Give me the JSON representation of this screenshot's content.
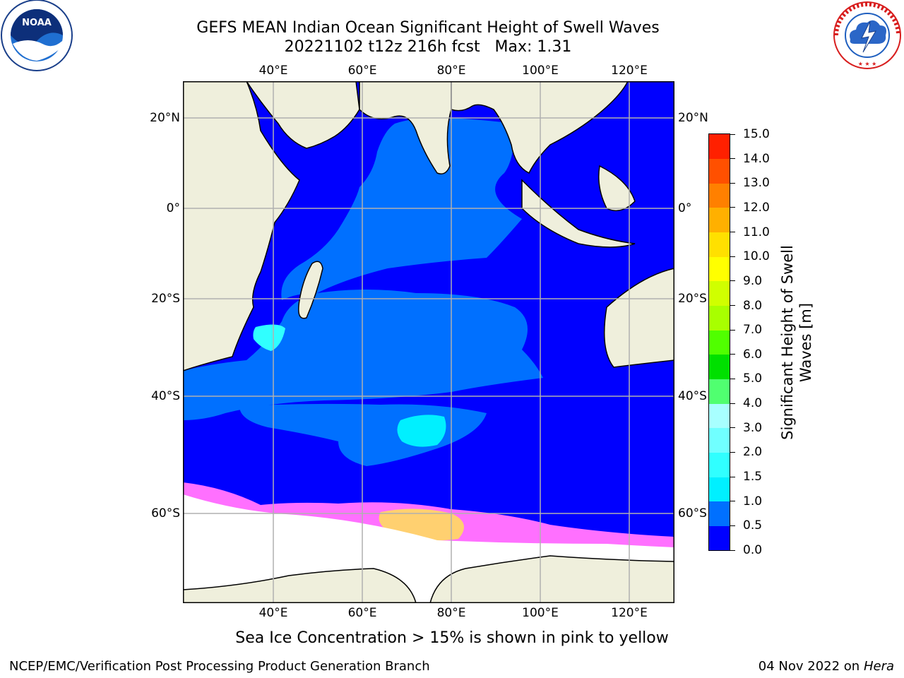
{
  "title": "GEFS MEAN Indian Ocean Significant Height of Swell Waves",
  "subtitle": "20221102 t12z 216h fcst   Max: 1.31",
  "lon_labels": [
    "40°E",
    "60°E",
    "80°E",
    "100°E",
    "120°E"
  ],
  "lat_labels": [
    "20°N",
    "0°",
    "20°S",
    "40°S",
    "60°S"
  ],
  "colorbar": {
    "label_line1": "Significant Height of Swell",
    "label_line2": "Waves [m]",
    "ticks": [
      "0.0",
      "0.5",
      "1.0",
      "1.5",
      "2.0",
      "3.0",
      "4.0",
      "5.0",
      "6.0",
      "7.0",
      "8.0",
      "9.0",
      "10.0",
      "11.0",
      "12.0",
      "13.0",
      "14.0",
      "15.0"
    ],
    "colors": [
      "#0000ff",
      "#0070ff",
      "#00f0ff",
      "#30ffff",
      "#70ffff",
      "#a8ffff",
      "#50ff70",
      "#00e000",
      "#50ff00",
      "#a8ff00",
      "#d0ff00",
      "#ffff00",
      "#ffe000",
      "#ffb000",
      "#ff8000",
      "#ff5000",
      "#ff2000",
      "#ff0000"
    ]
  },
  "note": "Sea Ice Concentration > 15% is shown in pink to yellow",
  "footer": {
    "credit": "NCEP/EMC/Verification Post Processing Product Generation Branch",
    "date": "04 Nov 2022 on",
    "machine": "Hera"
  },
  "logos": {
    "left": "NOAA",
    "right": "NATIONAL WEATHER SERVICE"
  },
  "palette": {
    "land": "#efefdc",
    "sea_ice": "#ffffff",
    "swell_low": "#0000ff",
    "swell_mid": "#0070ff",
    "swell_high": "#00f0ff",
    "ice_pink": "#ff70ff",
    "ice_yellow": "#ffd070"
  }
}
